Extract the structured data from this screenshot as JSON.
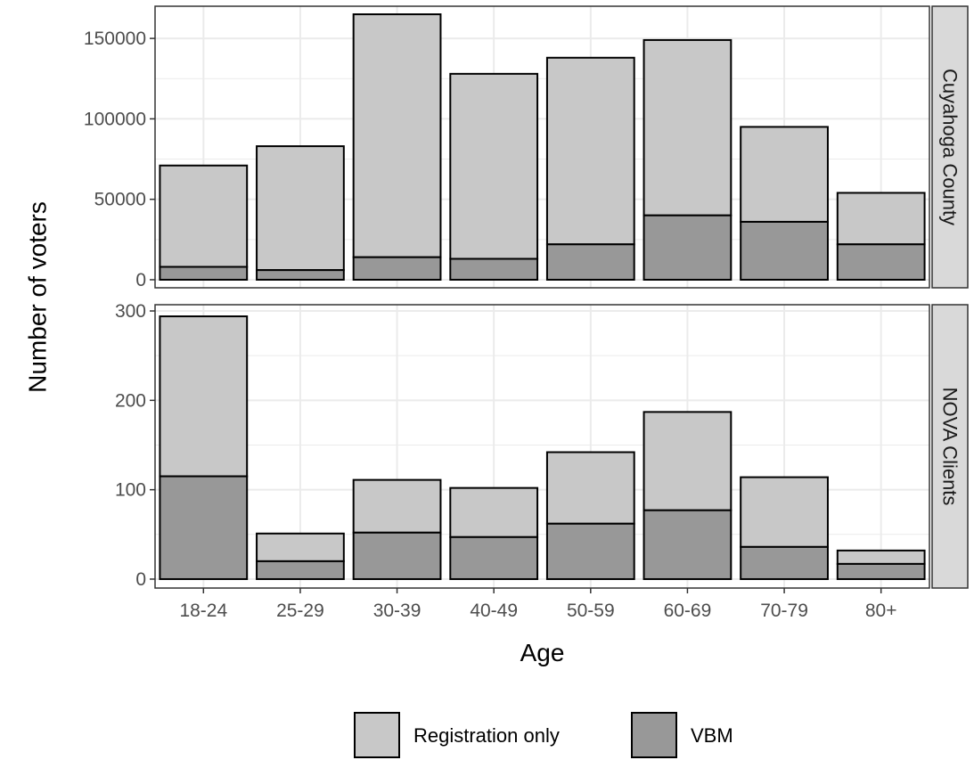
{
  "chart_data": {
    "type": "bar",
    "stacked": true,
    "facet_layout": "rows",
    "xlabel": "Age",
    "ylabel": "Number of voters",
    "categories": [
      "18-24",
      "25-29",
      "30-39",
      "40-49",
      "50-59",
      "60-69",
      "70-79",
      "80+"
    ],
    "legend": {
      "position": "bottom",
      "entries": [
        {
          "name": "Registration only",
          "color": "#c8c8c8"
        },
        {
          "name": "VBM",
          "color": "#989898"
        }
      ]
    },
    "grid": true,
    "colors": {
      "registration_only": "#c8c8c8",
      "vbm": "#989898",
      "bar_outline": "#000000",
      "strip_fill": "#d9d9d9",
      "grid": "#ebebeb",
      "panel_border": "#333333"
    },
    "panels": [
      {
        "strip": "Cuyahoga County",
        "ylim": [
          -5000,
          170000
        ],
        "y_ticks": [
          0,
          50000,
          100000,
          150000
        ],
        "y_tick_labels": [
          "0",
          "50000",
          "100000",
          "150000"
        ],
        "series": [
          {
            "name": "VBM",
            "values": [
              8000,
              6000,
              14000,
              13000,
              22000,
              40000,
              36000,
              22000
            ]
          },
          {
            "name": "Registration only",
            "values": [
              63000,
              77000,
              151000,
              115000,
              116000,
              109000,
              59000,
              32000
            ]
          }
        ],
        "totals": [
          71000,
          83000,
          165000,
          128000,
          138000,
          149000,
          95000,
          54000
        ]
      },
      {
        "strip": "NOVA Clients",
        "ylim": [
          -10,
          307
        ],
        "y_ticks": [
          0,
          100,
          200,
          300
        ],
        "y_tick_labels": [
          "0",
          "100",
          "200",
          "300"
        ],
        "series": [
          {
            "name": "VBM",
            "values": [
              115,
              20,
              52,
              47,
              62,
              77,
              36,
              17
            ]
          },
          {
            "name": "Registration only",
            "values": [
              179,
              31,
              59,
              55,
              80,
              110,
              78,
              15
            ]
          }
        ],
        "totals": [
          294,
          51,
          111,
          102,
          142,
          187,
          114,
          32
        ]
      }
    ]
  }
}
